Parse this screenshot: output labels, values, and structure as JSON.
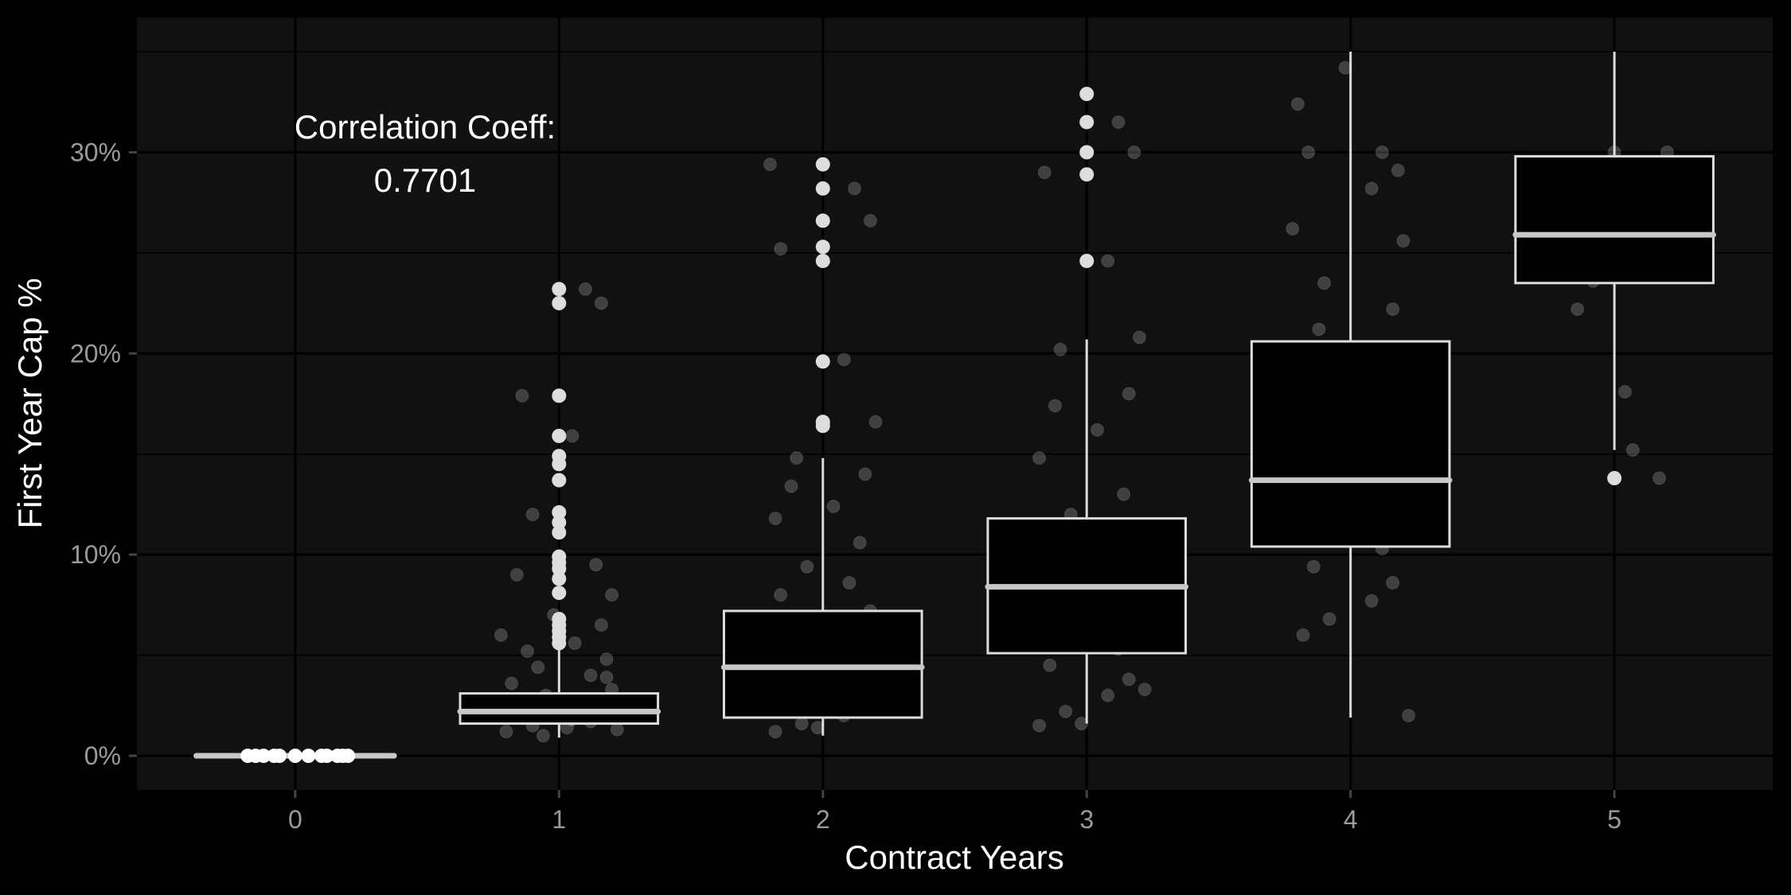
{
  "chart_data": {
    "type": "box",
    "xlabel": "Contract Years",
    "ylabel": "First Year Cap %",
    "categories": [
      "0",
      "1",
      "2",
      "3",
      "4",
      "5"
    ],
    "x_ticks": [
      "0",
      "1",
      "2",
      "3",
      "4",
      "5"
    ],
    "y_ticks": [
      "0%",
      "10%",
      "20%",
      "30%"
    ],
    "y_tick_values": [
      0,
      10,
      20,
      30
    ],
    "ylim": [
      -1.7,
      36.7
    ],
    "xlim": [
      -0.6,
      5.6
    ],
    "grid": true,
    "annotation": {
      "line1": "Correlation Coeff:",
      "line2": "0.7701"
    },
    "colors": {
      "background": "#000000",
      "panel": "#111111",
      "grid": "#000000",
      "box_stroke": "#dddddd",
      "median": "#c8c8c8",
      "point": "#ffffff"
    },
    "boxes": [
      {
        "category": "0",
        "q1": 0.0,
        "median": 0.0,
        "q3": 0.0,
        "whisker_low": 0.0,
        "whisker_high": 0.0,
        "outliers": []
      },
      {
        "category": "1",
        "q1": 1.6,
        "median": 2.2,
        "q3": 3.1,
        "whisker_low": 0.9,
        "whisker_high": 5.3,
        "outliers": [
          5.6,
          5.9,
          6.2,
          6.5,
          6.8,
          8.1,
          8.8,
          9.3,
          9.6,
          9.9,
          11.1,
          11.6,
          12.1,
          13.7,
          14.5,
          14.9,
          15.9,
          17.9,
          22.5,
          23.2
        ]
      },
      {
        "category": "2",
        "q1": 1.9,
        "median": 4.4,
        "q3": 7.2,
        "whisker_low": 1.0,
        "whisker_high": 14.8,
        "outliers": [
          16.4,
          16.6,
          19.6,
          24.6,
          25.3,
          26.6,
          28.2,
          29.4
        ]
      },
      {
        "category": "3",
        "q1": 5.1,
        "median": 8.4,
        "q3": 11.8,
        "whisker_low": 1.6,
        "whisker_high": 20.7,
        "outliers": [
          24.6,
          28.9,
          30.0,
          31.5,
          32.9
        ]
      },
      {
        "category": "4",
        "q1": 10.4,
        "median": 13.7,
        "q3": 20.6,
        "whisker_low": 1.9,
        "whisker_high": 35.0,
        "outliers": []
      },
      {
        "category": "5",
        "q1": 23.5,
        "median": 25.9,
        "q3": 29.8,
        "whisker_low": 15.2,
        "whisker_high": 35.0,
        "outliers": [
          13.8
        ]
      }
    ],
    "jitter_points": {
      "0": [
        [
          -0.18,
          0
        ],
        [
          -0.12,
          0
        ],
        [
          -0.06,
          0
        ],
        [
          0.0,
          0
        ],
        [
          0.05,
          0
        ],
        [
          0.1,
          0
        ],
        [
          0.16,
          0
        ],
        [
          0.2,
          0
        ],
        [
          -0.15,
          0
        ],
        [
          0.12,
          0
        ],
        [
          -0.08,
          0
        ],
        [
          0.18,
          0
        ]
      ],
      "1": [
        [
          -0.2,
          1.2
        ],
        [
          -0.1,
          1.5
        ],
        [
          0.05,
          1.8
        ],
        [
          0.15,
          2.1
        ],
        [
          -0.15,
          2.4
        ],
        [
          0.1,
          2.7
        ],
        [
          -0.05,
          3.0
        ],
        [
          0.2,
          3.3
        ],
        [
          -0.18,
          3.6
        ],
        [
          0.12,
          4.0
        ],
        [
          -0.08,
          4.4
        ],
        [
          0.18,
          4.8
        ],
        [
          -0.12,
          5.2
        ],
        [
          0.06,
          5.6
        ],
        [
          -0.22,
          6.0
        ],
        [
          0.16,
          6.5
        ],
        [
          -0.02,
          7.0
        ],
        [
          0.2,
          8.0
        ],
        [
          -0.16,
          9.0
        ],
        [
          0.14,
          9.5
        ],
        [
          -0.1,
          12.0
        ],
        [
          0.05,
          15.9
        ],
        [
          -0.14,
          17.9
        ],
        [
          0.1,
          23.2
        ],
        [
          0.16,
          22.5
        ],
        [
          -0.06,
          1.0
        ],
        [
          0.22,
          1.3
        ],
        [
          -0.2,
          1.9
        ],
        [
          0.08,
          2.3
        ],
        [
          -0.12,
          2.6
        ],
        [
          0.03,
          1.4
        ],
        [
          -0.03,
          2.0
        ],
        [
          0.12,
          1.7
        ],
        [
          -0.18,
          2.8
        ],
        [
          0.18,
          3.9
        ]
      ],
      "2": [
        [
          -0.18,
          1.2
        ],
        [
          -0.08,
          1.6
        ],
        [
          0.08,
          2.0
        ],
        [
          0.16,
          2.4
        ],
        [
          -0.14,
          3.0
        ],
        [
          0.12,
          3.6
        ],
        [
          -0.04,
          4.2
        ],
        [
          0.2,
          4.8
        ],
        [
          -0.2,
          5.4
        ],
        [
          0.06,
          6.0
        ],
        [
          -0.1,
          6.6
        ],
        [
          0.18,
          7.2
        ],
        [
          -0.16,
          8.0
        ],
        [
          0.1,
          8.6
        ],
        [
          -0.06,
          9.4
        ],
        [
          0.14,
          10.6
        ],
        [
          -0.18,
          11.8
        ],
        [
          0.04,
          12.4
        ],
        [
          -0.12,
          13.4
        ],
        [
          0.16,
          14.0
        ],
        [
          -0.1,
          14.8
        ],
        [
          0.2,
          16.6
        ],
        [
          0.08,
          19.7
        ],
        [
          -0.16,
          25.2
        ],
        [
          0.12,
          28.2
        ],
        [
          -0.2,
          29.4
        ],
        [
          0.18,
          26.6
        ],
        [
          -0.02,
          1.4
        ],
        [
          0.22,
          2.8
        ],
        [
          -0.22,
          3.4
        ]
      ],
      "3": [
        [
          -0.18,
          1.5
        ],
        [
          -0.08,
          2.2
        ],
        [
          0.08,
          3.0
        ],
        [
          0.16,
          3.8
        ],
        [
          -0.14,
          4.5
        ],
        [
          0.12,
          5.3
        ],
        [
          -0.04,
          6.0
        ],
        [
          0.2,
          6.8
        ],
        [
          -0.2,
          7.5
        ],
        [
          0.06,
          8.2
        ],
        [
          -0.1,
          9.0
        ],
        [
          0.18,
          9.8
        ],
        [
          -0.16,
          10.6
        ],
        [
          0.1,
          11.2
        ],
        [
          -0.06,
          12.0
        ],
        [
          0.14,
          13.0
        ],
        [
          -0.18,
          14.8
        ],
        [
          0.04,
          16.2
        ],
        [
          -0.12,
          17.4
        ],
        [
          0.16,
          18.0
        ],
        [
          -0.1,
          20.2
        ],
        [
          0.2,
          20.8
        ],
        [
          0.08,
          24.6
        ],
        [
          -0.16,
          29.0
        ],
        [
          0.12,
          31.5
        ],
        [
          0.18,
          30.0
        ],
        [
          -0.02,
          1.6
        ],
        [
          0.22,
          3.3
        ],
        [
          -0.22,
          8.6
        ]
      ],
      "4": [
        [
          -0.18,
          6.0
        ],
        [
          -0.08,
          6.8
        ],
        [
          0.08,
          7.7
        ],
        [
          0.16,
          8.6
        ],
        [
          -0.14,
          9.4
        ],
        [
          0.12,
          10.3
        ],
        [
          -0.04,
          11.0
        ],
        [
          0.2,
          11.8
        ],
        [
          -0.2,
          12.6
        ],
        [
          0.06,
          13.3
        ],
        [
          -0.1,
          14.0
        ],
        [
          0.18,
          15.0
        ],
        [
          -0.16,
          15.6
        ],
        [
          0.1,
          16.6
        ],
        [
          -0.06,
          17.3
        ],
        [
          0.14,
          18.0
        ],
        [
          -0.18,
          19.0
        ],
        [
          0.04,
          19.6
        ],
        [
          -0.12,
          21.2
        ],
        [
          0.16,
          22.2
        ],
        [
          -0.1,
          23.5
        ],
        [
          0.2,
          25.6
        ],
        [
          0.08,
          28.2
        ],
        [
          -0.16,
          30.0
        ],
        [
          0.12,
          30.0
        ],
        [
          -0.2,
          32.4
        ],
        [
          0.18,
          29.1
        ],
        [
          -0.02,
          34.2
        ],
        [
          0.22,
          2.0
        ],
        [
          -0.22,
          26.2
        ]
      ],
      "5": [
        [
          -0.14,
          22.2
        ],
        [
          -0.08,
          23.6
        ],
        [
          0.05,
          24.8
        ],
        [
          0.16,
          26.0
        ],
        [
          -0.18,
          25.0
        ],
        [
          0.1,
          28.3
        ],
        [
          -0.04,
          28.2
        ],
        [
          0.2,
          30.0
        ],
        [
          0.0,
          30.0
        ],
        [
          0.07,
          15.2
        ],
        [
          0.04,
          18.1
        ],
        [
          0.17,
          13.8
        ]
      ]
    }
  }
}
